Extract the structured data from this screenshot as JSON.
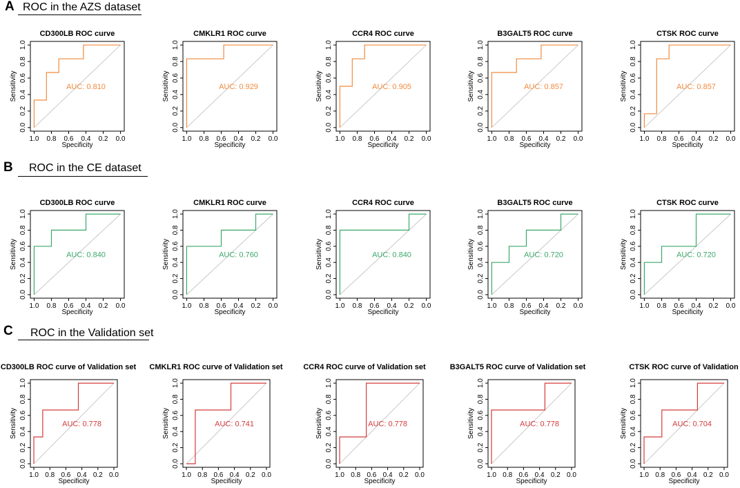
{
  "sections": [
    {
      "letter": "A",
      "title": "ROC in the AZS dataset"
    },
    {
      "letter": "B",
      "title": "ROC in the CE dataset"
    },
    {
      "letter": "C",
      "title": "ROC in the Validation set"
    }
  ],
  "colors": {
    "A": "#f08a3e",
    "B": "#3aa86a",
    "C": "#d43a3a",
    "diagonal": "#c8c8c8",
    "axis": "#000000"
  },
  "chart_data": [
    {
      "type": "line",
      "section": "A",
      "title": "CD300LB ROC curve",
      "xlabel": "Specificity",
      "ylabel": "Sensitivity",
      "xlim": [
        1.0,
        0.0
      ],
      "ylim": [
        0.0,
        1.0
      ],
      "xticks": [
        "1.0",
        "0.8",
        "0.6",
        "0.4",
        "0.2",
        "0.0"
      ],
      "yticks": [
        "0.0",
        "0.2",
        "0.4",
        "0.6",
        "0.8",
        "1.0"
      ],
      "auc_label": "AUC: 0.810",
      "specificity": [
        1.0,
        1.0,
        0.857,
        0.857,
        0.714,
        0.714,
        0.429,
        0.429,
        0.0
      ],
      "sensitivity": [
        0.0,
        0.333,
        0.333,
        0.667,
        0.667,
        0.833,
        0.833,
        1.0,
        1.0
      ]
    },
    {
      "type": "line",
      "section": "A",
      "title": "CMKLR1 ROC curve",
      "xlabel": "Specificity",
      "ylabel": "Sensitivity",
      "xlim": [
        1.0,
        0.0
      ],
      "ylim": [
        0.0,
        1.0
      ],
      "xticks": [
        "1.0",
        "0.8",
        "0.6",
        "0.4",
        "0.2",
        "0.0"
      ],
      "yticks": [
        "0.0",
        "0.2",
        "0.4",
        "0.6",
        "0.8",
        "1.0"
      ],
      "auc_label": "AUC: 0.929",
      "specificity": [
        1.0,
        1.0,
        0.571,
        0.571,
        0.0
      ],
      "sensitivity": [
        0.0,
        0.833,
        0.833,
        1.0,
        1.0
      ]
    },
    {
      "type": "line",
      "section": "A",
      "title": "CCR4 ROC curve",
      "xlabel": "Specificity",
      "ylabel": "Sensitivity",
      "xlim": [
        1.0,
        0.0
      ],
      "ylim": [
        0.0,
        1.0
      ],
      "xticks": [
        "1.0",
        "0.8",
        "0.6",
        "0.4",
        "0.2",
        "0.0"
      ],
      "yticks": [
        "0.0",
        "0.2",
        "0.4",
        "0.6",
        "0.8",
        "1.0"
      ],
      "auc_label": "AUC: 0.905",
      "specificity": [
        1.0,
        1.0,
        0.857,
        0.857,
        0.714,
        0.714,
        0.0
      ],
      "sensitivity": [
        0.0,
        0.5,
        0.5,
        0.833,
        0.833,
        1.0,
        1.0
      ]
    },
    {
      "type": "line",
      "section": "A",
      "title": "B3GALT5 ROC curve",
      "xlabel": "Specificity",
      "ylabel": "Sensitivity",
      "xlim": [
        1.0,
        0.0
      ],
      "ylim": [
        0.0,
        1.0
      ],
      "xticks": [
        "1.0",
        "0.8",
        "0.6",
        "0.4",
        "0.2",
        "0.0"
      ],
      "yticks": [
        "0.0",
        "0.2",
        "0.4",
        "0.6",
        "0.8",
        "1.0"
      ],
      "auc_label": "AUC: 0.857",
      "specificity": [
        1.0,
        1.0,
        0.714,
        0.714,
        0.429,
        0.429,
        0.0
      ],
      "sensitivity": [
        0.0,
        0.667,
        0.667,
        0.833,
        0.833,
        1.0,
        1.0
      ]
    },
    {
      "type": "line",
      "section": "A",
      "title": "CTSK ROC curve",
      "xlabel": "Specificity",
      "ylabel": "Sensitivity",
      "xlim": [
        1.0,
        0.0
      ],
      "ylim": [
        0.0,
        1.0
      ],
      "xticks": [
        "1.0",
        "0.8",
        "0.6",
        "0.4",
        "0.2",
        "0.0"
      ],
      "yticks": [
        "0.0",
        "0.2",
        "0.4",
        "0.6",
        "0.8",
        "1.0"
      ],
      "auc_label": "AUC: 0.857",
      "specificity": [
        1.0,
        1.0,
        0.857,
        0.857,
        0.714,
        0.714,
        0.0
      ],
      "sensitivity": [
        0.0,
        0.167,
        0.167,
        0.833,
        0.833,
        1.0,
        1.0
      ]
    },
    {
      "type": "line",
      "section": "B",
      "title": "CD300LB ROC curve",
      "xlabel": "Specificity",
      "ylabel": "Sensitivity",
      "xlim": [
        1.0,
        0.0
      ],
      "ylim": [
        0.0,
        1.0
      ],
      "xticks": [
        "1.0",
        "0.8",
        "0.6",
        "0.4",
        "0.2",
        "0.0"
      ],
      "yticks": [
        "0.0",
        "0.2",
        "0.4",
        "0.6",
        "0.8",
        "1.0"
      ],
      "auc_label": "AUC: 0.840",
      "specificity": [
        1.0,
        1.0,
        0.8,
        0.8,
        0.4,
        0.4,
        0.0
      ],
      "sensitivity": [
        0.0,
        0.6,
        0.6,
        0.8,
        0.8,
        1.0,
        1.0
      ]
    },
    {
      "type": "line",
      "section": "B",
      "title": "CMKLR1 ROC curve",
      "xlabel": "Specificity",
      "ylabel": "Sensitivity",
      "xlim": [
        1.0,
        0.0
      ],
      "ylim": [
        0.0,
        1.0
      ],
      "xticks": [
        "1.0",
        "0.8",
        "0.6",
        "0.4",
        "0.2",
        "0.0"
      ],
      "yticks": [
        "0.0",
        "0.2",
        "0.4",
        "0.6",
        "0.8",
        "1.0"
      ],
      "auc_label": "AUC: 0.760",
      "specificity": [
        1.0,
        1.0,
        0.6,
        0.6,
        0.2,
        0.2,
        0.0
      ],
      "sensitivity": [
        0.0,
        0.6,
        0.6,
        0.8,
        0.8,
        1.0,
        1.0
      ]
    },
    {
      "type": "line",
      "section": "B",
      "title": "CCR4 ROC curve",
      "xlabel": "Specificity",
      "ylabel": "Sensitivity",
      "xlim": [
        1.0,
        0.0
      ],
      "ylim": [
        0.0,
        1.0
      ],
      "xticks": [
        "1.0",
        "0.8",
        "0.6",
        "0.4",
        "0.2",
        "0.0"
      ],
      "yticks": [
        "0.0",
        "0.2",
        "0.4",
        "0.6",
        "0.8",
        "1.0"
      ],
      "auc_label": "AUC: 0.840",
      "specificity": [
        1.0,
        1.0,
        0.2,
        0.2,
        0.0
      ],
      "sensitivity": [
        0.0,
        0.8,
        0.8,
        1.0,
        1.0
      ]
    },
    {
      "type": "line",
      "section": "B",
      "title": "B3GALT5 ROC curve",
      "xlabel": "Specificity",
      "ylabel": "Sensitivity",
      "xlim": [
        1.0,
        0.0
      ],
      "ylim": [
        0.0,
        1.0
      ],
      "xticks": [
        "1.0",
        "0.8",
        "0.6",
        "0.4",
        "0.2",
        "0.0"
      ],
      "yticks": [
        "0.0",
        "0.2",
        "0.4",
        "0.6",
        "0.8",
        "1.0"
      ],
      "auc_label": "AUC: 0.720",
      "specificity": [
        1.0,
        1.0,
        0.8,
        0.8,
        0.6,
        0.6,
        0.2,
        0.2,
        0.0
      ],
      "sensitivity": [
        0.0,
        0.4,
        0.4,
        0.6,
        0.6,
        0.8,
        0.8,
        1.0,
        1.0
      ]
    },
    {
      "type": "line",
      "section": "B",
      "title": "CTSK ROC curve",
      "xlabel": "Specificity",
      "ylabel": "Sensitivity",
      "xlim": [
        1.0,
        0.0
      ],
      "ylim": [
        0.0,
        1.0
      ],
      "xticks": [
        "1.0",
        "0.8",
        "0.6",
        "0.4",
        "0.2",
        "0.0"
      ],
      "yticks": [
        "0.0",
        "0.2",
        "0.4",
        "0.6",
        "0.8",
        "1.0"
      ],
      "auc_label": "AUC: 0.720",
      "specificity": [
        1.0,
        1.0,
        0.8,
        0.8,
        0.4,
        0.4,
        0.0
      ],
      "sensitivity": [
        0.0,
        0.4,
        0.4,
        0.6,
        0.6,
        1.0,
        1.0
      ]
    },
    {
      "type": "line",
      "section": "C",
      "title": "CD300LB ROC curve of Validation set",
      "xlabel": "Specificity",
      "ylabel": "Sensitivity",
      "xlim": [
        1.0,
        0.0
      ],
      "ylim": [
        0.0,
        1.0
      ],
      "xticks": [
        "1.0",
        "0.8",
        "0.6",
        "0.4",
        "0.2",
        "0.0"
      ],
      "yticks": [
        "0.0",
        "0.2",
        "0.4",
        "0.6",
        "0.8",
        "1.0"
      ],
      "auc_label": "AUC: 0.778",
      "specificity": [
        1.0,
        1.0,
        0.889,
        0.889,
        0.444,
        0.444,
        0.0
      ],
      "sensitivity": [
        0.0,
        0.333,
        0.333,
        0.667,
        0.667,
        1.0,
        1.0
      ]
    },
    {
      "type": "line",
      "section": "C",
      "title": "CMKLR1 ROC curve of Validation set",
      "xlabel": "Specificity",
      "ylabel": "Sensitivity",
      "xlim": [
        1.0,
        0.0
      ],
      "ylim": [
        0.0,
        1.0
      ],
      "xticks": [
        "1.0",
        "0.8",
        "0.6",
        "0.4",
        "0.2",
        "0.0"
      ],
      "yticks": [
        "0.0",
        "0.2",
        "0.4",
        "0.6",
        "0.8",
        "1.0"
      ],
      "auc_label": "AUC: 0.741",
      "specificity": [
        1.0,
        0.889,
        0.889,
        0.444,
        0.444,
        0.0
      ],
      "sensitivity": [
        0.0,
        0.0,
        0.667,
        0.667,
        1.0,
        1.0
      ]
    },
    {
      "type": "line",
      "section": "C",
      "title": "CCR4 ROC curve of Validation set",
      "xlabel": "Specificity",
      "ylabel": "Sensitivity",
      "xlim": [
        1.0,
        0.0
      ],
      "ylim": [
        0.0,
        1.0
      ],
      "xticks": [
        "1.0",
        "0.8",
        "0.6",
        "0.4",
        "0.2",
        "0.0"
      ],
      "yticks": [
        "0.0",
        "0.2",
        "0.4",
        "0.6",
        "0.8",
        "1.0"
      ],
      "auc_label": "AUC: 0.778",
      "specificity": [
        1.0,
        1.0,
        0.667,
        0.667,
        0.0
      ],
      "sensitivity": [
        0.0,
        0.333,
        0.333,
        1.0,
        1.0
      ]
    },
    {
      "type": "line",
      "section": "C",
      "title": "B3GALT5 ROC curve of Validation set",
      "xlabel": "Specificity",
      "ylabel": "Sensitivity",
      "xlim": [
        1.0,
        0.0
      ],
      "ylim": [
        0.0,
        1.0
      ],
      "xticks": [
        "1.0",
        "0.8",
        "0.6",
        "0.4",
        "0.2",
        "0.0"
      ],
      "yticks": [
        "0.0",
        "0.2",
        "0.4",
        "0.6",
        "0.8",
        "1.0"
      ],
      "auc_label": "AUC: 0.778",
      "specificity": [
        1.0,
        1.0,
        0.333,
        0.333,
        0.0
      ],
      "sensitivity": [
        0.0,
        0.667,
        0.667,
        1.0,
        1.0
      ]
    },
    {
      "type": "line",
      "section": "C",
      "title": "CTSK ROC curve of Validation set",
      "xlabel": "Specificity",
      "ylabel": "Sensitivity",
      "xlim": [
        1.0,
        0.0
      ],
      "ylim": [
        0.0,
        1.0
      ],
      "xticks": [
        "1.0",
        "0.8",
        "0.6",
        "0.4",
        "0.2",
        "0.0"
      ],
      "yticks": [
        "0.0",
        "0.2",
        "0.4",
        "0.6",
        "0.8",
        "1.0"
      ],
      "auc_label": "AUC: 0.704",
      "specificity": [
        1.0,
        1.0,
        0.778,
        0.778,
        0.333,
        0.333,
        0.0
      ],
      "sensitivity": [
        0.0,
        0.333,
        0.333,
        0.667,
        0.667,
        1.0,
        1.0
      ]
    }
  ]
}
